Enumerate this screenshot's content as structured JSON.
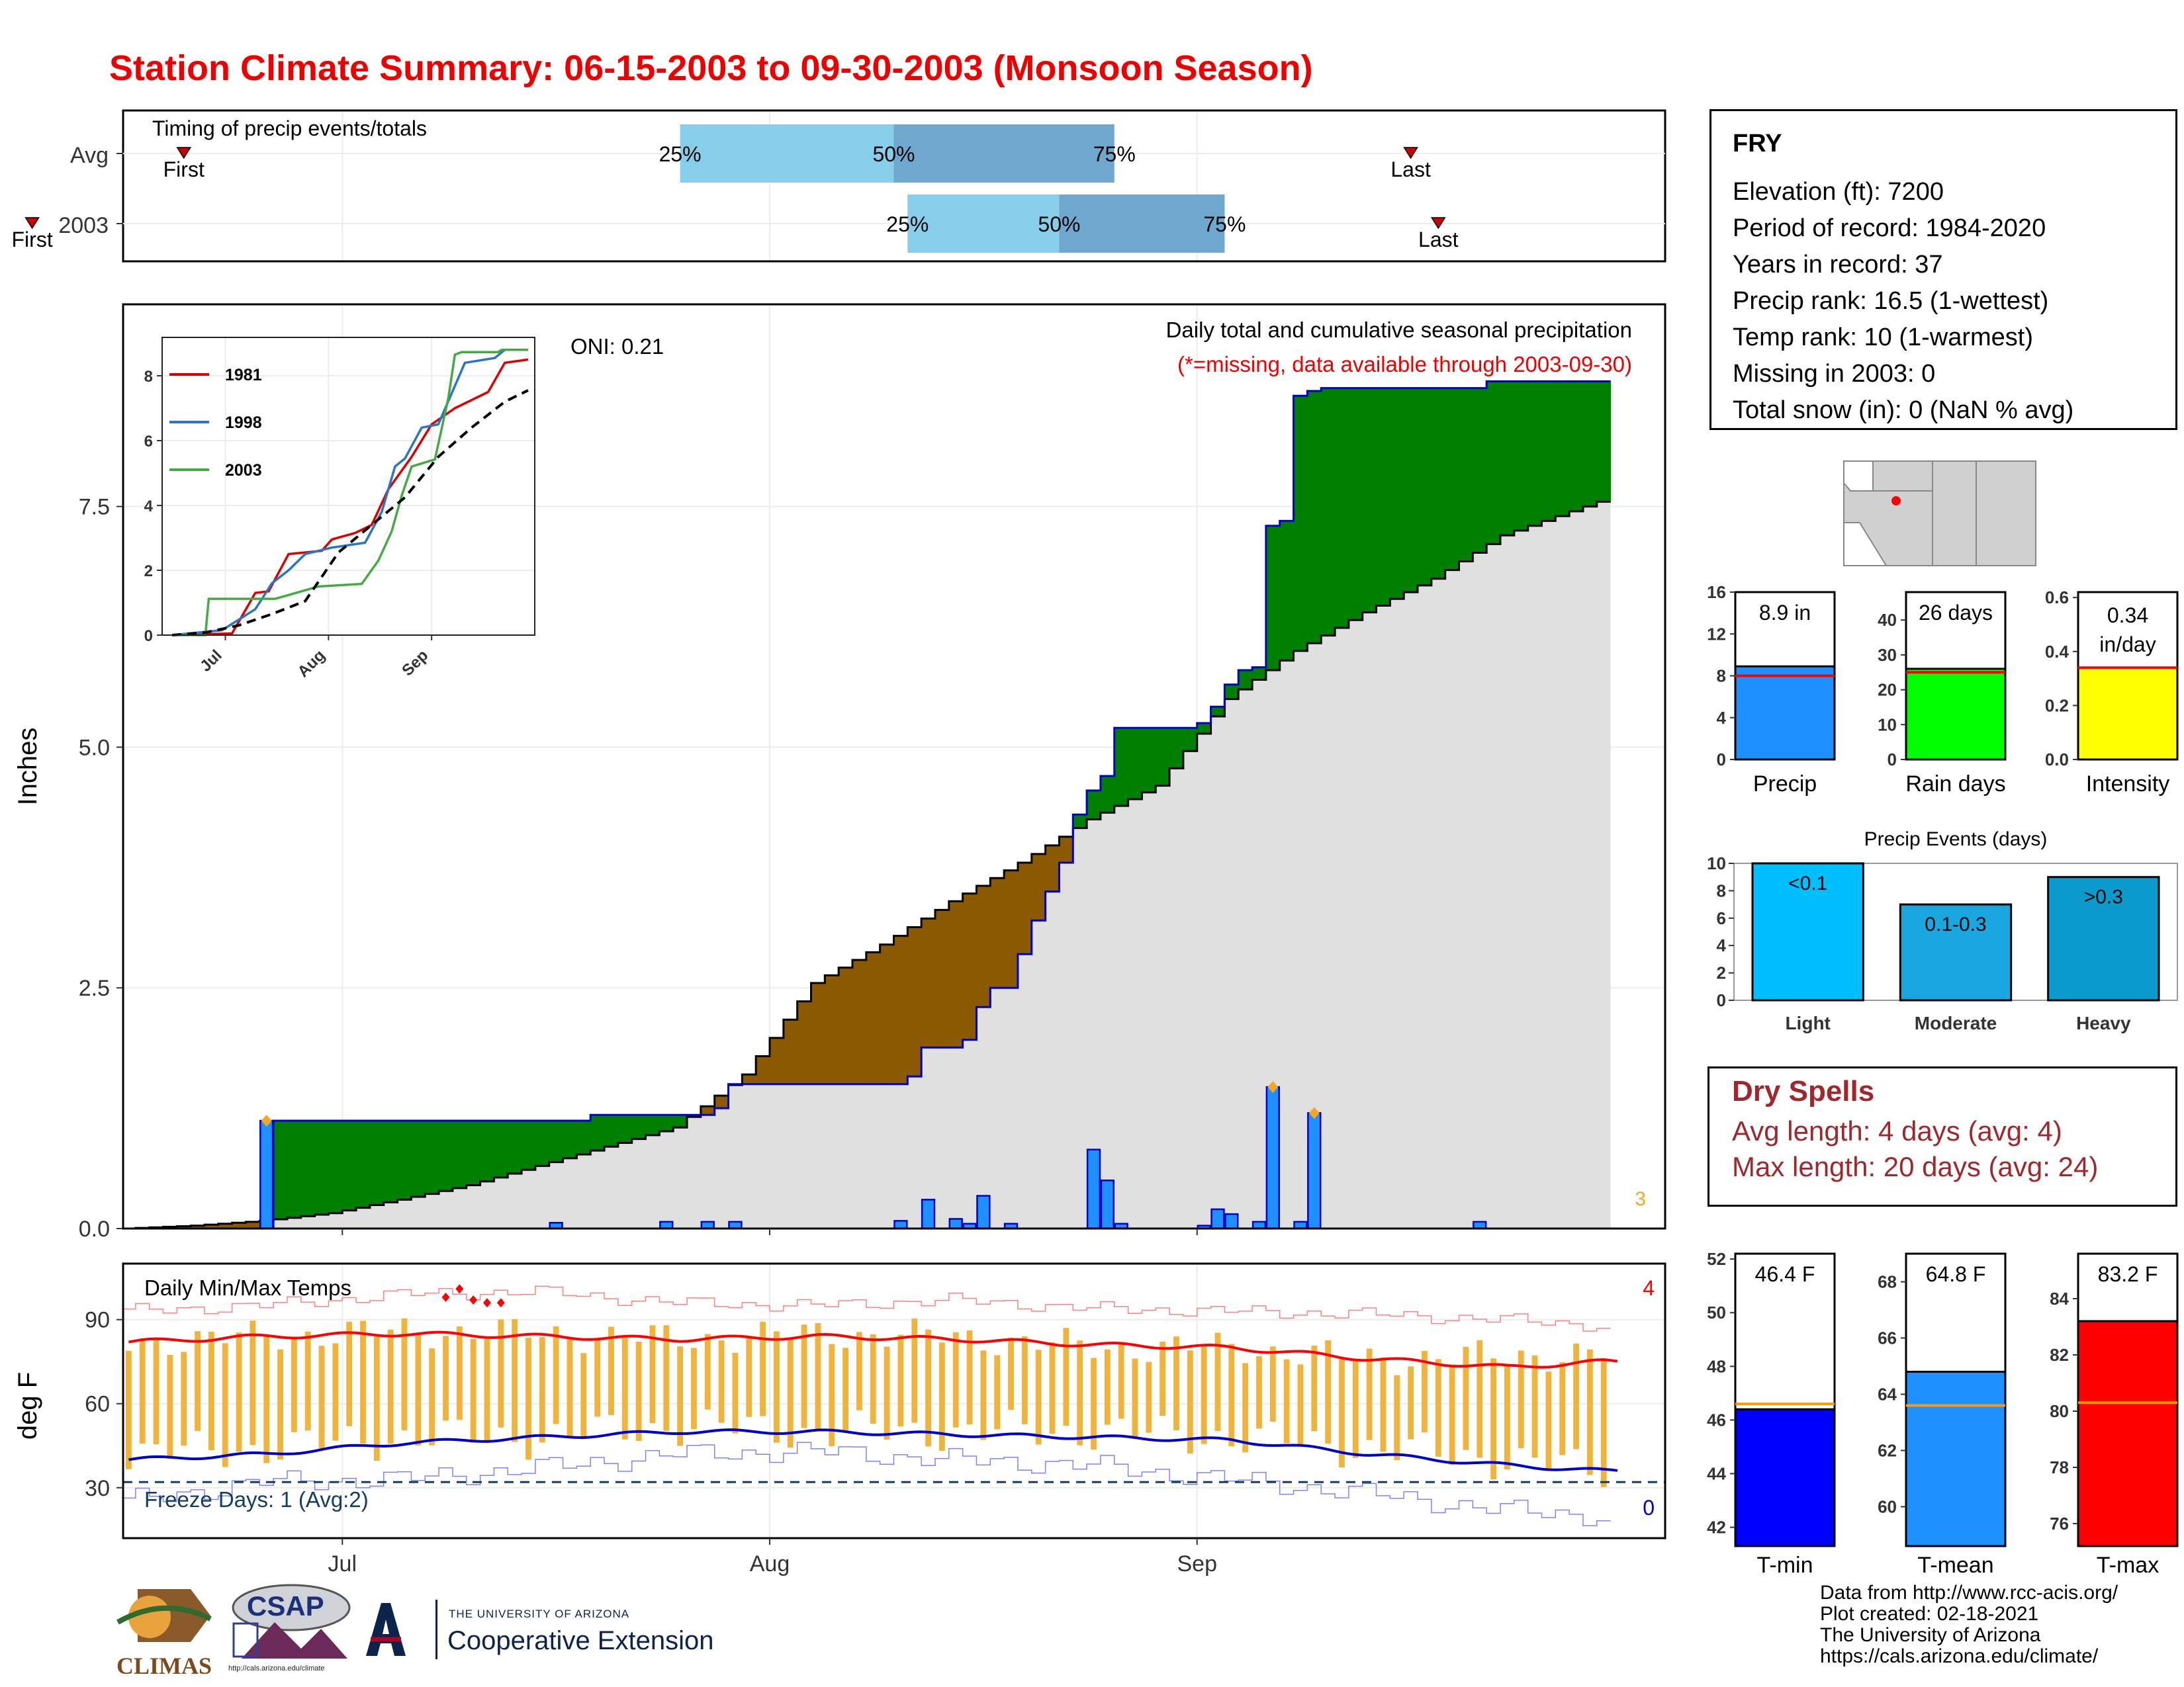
{
  "page": {
    "title": "Station Climate Summary: 06-15-2003 to 09-30-2003 (Monsoon Season)"
  },
  "station": {
    "name": "FRY",
    "lines": [
      "Elevation (ft): 7200",
      "Period of record: 1984-2020",
      "Years in record: 37",
      "Precip rank: 16.5 (1-wettest)",
      "Temp rank: 10 (1-warmest)",
      "Missing in 2003: 0",
      "Total snow (in): 0 (NaN % avg)"
    ]
  },
  "dry_spells": {
    "title": "Dry Spells",
    "avg_line": "Avg length: 4 days (avg: 4)",
    "max_line": "Max length: 20 days (avg: 24)"
  },
  "credits": [
    "Data from http://www.rcc-acis.org/",
    "Plot created: 02-18-2021",
    "The University of Arizona",
    "https://cals.arizona.edu/climate/"
  ],
  "logos": {
    "climas": "CLIMAS",
    "csap": "CSAP",
    "csap_url": "http://cals.arizona.edu/climate",
    "ua_small": "THE UNIVERSITY OF ARIZONA",
    "ua_big": "Cooperative Extension"
  },
  "colors": {
    "accent_red": "#ee0000",
    "wet_above_avg": "#008000",
    "dry_below_avg": "#8b5a00",
    "daily_bar": "#1e90ff",
    "cumulative_line": "#0000cc",
    "avg_fill": "#e0e0e0",
    "quartile_light": "#87ceeb",
    "quartile_dark": "#6fa8cf",
    "temp_bar": "#f0b43c",
    "tmax_avg": "#ff0000",
    "tmin_avg": "#0000cc",
    "dry_spell": "#a0282d"
  },
  "chart_data": [
    {
      "id": "timing",
      "type": "bar",
      "title": "Timing of precip events/totals",
      "categories": [
        "Avg",
        "2003"
      ],
      "first_label": "First",
      "last_label": "Last",
      "quartile_labels": [
        "25%",
        "50%",
        "75%"
      ],
      "x_unit": "day of season (0 = Jun 15)",
      "rows": [
        {
          "name": "Avg",
          "first": 4.5,
          "q25": 40.5,
          "q50": 56,
          "q75": 72,
          "last": 93.5
        },
        {
          "name": "2003",
          "first": -6.5,
          "q25": 57,
          "q50": 68,
          "q75": 80,
          "last": 95.5
        }
      ]
    },
    {
      "id": "precip",
      "type": "area",
      "ylabel": "Inches",
      "ylim": [
        0,
        9.6
      ],
      "yticks": [
        0,
        2.5,
        5,
        7.5
      ],
      "xticks": [
        {
          "day": 16,
          "label": "Jul"
        },
        {
          "day": 47,
          "label": "Aug"
        },
        {
          "day": 78,
          "label": "Sep"
        }
      ],
      "annotations": {
        "oni": "ONI: 0.21",
        "desc": "Daily total and cumulative seasonal precipitation",
        "missing": "(*=missing, data available through 2003-09-30)",
        "corner": "3"
      },
      "avg_cumulative": {
        "days": [
          0,
          5,
          10,
          15,
          20,
          25,
          30,
          35,
          40,
          45,
          50,
          55,
          60,
          65,
          70,
          75,
          80,
          85,
          90,
          95,
          100,
          107
        ],
        "values": [
          0.0,
          0.03,
          0.08,
          0.16,
          0.3,
          0.45,
          0.65,
          0.85,
          1.05,
          1.6,
          2.55,
          2.95,
          3.4,
          3.8,
          4.25,
          4.6,
          5.5,
          6.0,
          6.4,
          6.75,
          7.2,
          7.55
        ]
      },
      "cumulative_2003": {
        "days": [
          0,
          10,
          11,
          31,
          34,
          38,
          43,
          44,
          56,
          57,
          58,
          61,
          62,
          63,
          65,
          66,
          67,
          68,
          69,
          70,
          71,
          72,
          78,
          79,
          80,
          81,
          82,
          83,
          84,
          85,
          86,
          87,
          98,
          99,
          107
        ],
        "values": [
          0.0,
          0.0,
          1.12,
          1.12,
          1.18,
          1.18,
          1.25,
          1.5,
          1.5,
          1.58,
          1.88,
          1.96,
          2.3,
          2.5,
          2.85,
          3.2,
          3.5,
          3.8,
          4.3,
          4.55,
          4.7,
          5.2,
          5.25,
          5.42,
          5.65,
          5.8,
          5.83,
          7.3,
          7.35,
          8.65,
          8.7,
          8.73,
          8.73,
          8.8,
          8.8
        ]
      },
      "daily_2003": {
        "days": [
          10,
          31,
          39,
          42,
          44,
          56,
          58,
          60,
          61,
          62,
          64,
          70,
          71,
          72,
          78,
          79,
          80,
          82,
          83,
          85,
          86,
          98
        ],
        "values": [
          1.12,
          0.06,
          0.07,
          0.07,
          0.07,
          0.08,
          0.3,
          0.1,
          0.05,
          0.34,
          0.05,
          0.82,
          0.5,
          0.05,
          0.03,
          0.2,
          0.15,
          0.07,
          1.47,
          0.07,
          1.2,
          0.07
        ]
      },
      "highlight_days": [
        10,
        83,
        86
      ],
      "inset": {
        "type": "line",
        "ylim": [
          0,
          9
        ],
        "yticks": [
          0,
          2,
          4,
          6,
          8
        ],
        "xticks": [
          {
            "day": 16,
            "label": "Jul"
          },
          {
            "day": 47,
            "label": "Aug"
          },
          {
            "day": 78,
            "label": "Sep"
          }
        ],
        "series": [
          {
            "name": "1981",
            "color": "#dd0000",
            "days": [
              0,
              18,
              25,
              29,
              35,
              45,
              48,
              55,
              60,
              65,
              72,
              78,
              85,
              95,
              100,
              107
            ],
            "values": [
              0.0,
              0.05,
              1.3,
              1.35,
              2.5,
              2.6,
              2.95,
              3.15,
              3.4,
              4.5,
              5.5,
              6.5,
              7.0,
              7.5,
              8.4,
              8.5
            ]
          },
          {
            "name": "1998",
            "color": "#2a75c4",
            "days": [
              0,
              15,
              25,
              30,
              35,
              40,
              48,
              58,
              63,
              67,
              70,
              75,
              80,
              88,
              97,
              100,
              107
            ],
            "values": [
              0.0,
              0.15,
              0.8,
              1.6,
              2.0,
              2.5,
              2.7,
              2.85,
              3.8,
              5.2,
              5.45,
              6.4,
              6.5,
              8.4,
              8.55,
              8.8,
              8.8
            ]
          },
          {
            "name": "2003",
            "color": "#44aa44",
            "days": [
              0,
              10,
              11,
              31,
              44,
              57,
              62,
              66,
              69,
              72,
              79,
              83,
              85,
              87,
              98,
              99,
              107
            ],
            "values": [
              0.0,
              0.0,
              1.12,
              1.12,
              1.5,
              1.58,
              2.3,
              3.2,
              4.3,
              5.2,
              5.42,
              7.3,
              8.65,
              8.73,
              8.73,
              8.8,
              8.8
            ]
          },
          {
            "name": "",
            "color": "#000000",
            "dash": true,
            "days": [
              0,
              10,
              20,
              30,
              40,
              50,
              60,
              70,
              80,
              90,
              100,
              107
            ],
            "values": [
              0.0,
              0.08,
              0.3,
              0.65,
              1.05,
              2.55,
              3.4,
              4.25,
              5.5,
              6.4,
              7.2,
              7.55
            ]
          }
        ]
      }
    },
    {
      "id": "temperature",
      "type": "bar",
      "title": "Daily Min/Max Temps",
      "ylabel": "deg F",
      "ylim": [
        12,
        110
      ],
      "yticks": [
        30,
        60,
        90
      ],
      "xticks": [
        {
          "day": 16,
          "label": "Jul"
        },
        {
          "day": 47,
          "label": "Aug"
        },
        {
          "day": 78,
          "label": "Sep"
        }
      ],
      "freeze_text": "Freeze Days: 1 (Avg:2)",
      "freeze_line": 32,
      "corner_top": "4",
      "corner_bottom": "0",
      "tmax_2003_approx": {
        "days": [
          0,
          10,
          20,
          30,
          40,
          50,
          60,
          70,
          80,
          90,
          100,
          107
        ],
        "values": [
          82,
          84,
          86,
          85,
          83,
          85,
          84,
          80,
          80,
          76,
          77,
          78
        ]
      },
      "tmin_2003_approx": {
        "days": [
          0,
          10,
          20,
          30,
          40,
          50,
          60,
          70,
          80,
          90,
          100,
          107
        ],
        "values": [
          42,
          44,
          48,
          48,
          52,
          50,
          50,
          50,
          48,
          44,
          40,
          36
        ]
      },
      "tmax_avg": {
        "days": [
          0,
          10,
          20,
          30,
          40,
          50,
          60,
          70,
          80,
          90,
          100,
          107
        ],
        "values": [
          82,
          84,
          85,
          84,
          83,
          84,
          83,
          81,
          80,
          76,
          73,
          75
        ]
      },
      "tmin_avg": {
        "days": [
          0,
          10,
          20,
          30,
          40,
          50,
          60,
          70,
          80,
          90,
          100,
          107
        ],
        "values": [
          40,
          42,
          46,
          48,
          50,
          50,
          49,
          48,
          47,
          42,
          38,
          36
        ]
      },
      "tmax_record": {
        "days": [
          0,
          10,
          20,
          30,
          40,
          50,
          60,
          70,
          80,
          90,
          100,
          107
        ],
        "values": [
          93,
          95,
          99,
          100,
          96,
          95,
          97,
          94,
          93,
          92,
          90,
          88
        ]
      },
      "tmin_record": {
        "days": [
          0,
          10,
          20,
          30,
          40,
          50,
          60,
          70,
          80,
          90,
          100,
          107
        ],
        "values": [
          25,
          32,
          33,
          37,
          42,
          43,
          40,
          38,
          33,
          28,
          22,
          20
        ]
      },
      "record_highs": [
        {
          "day": 23,
          "value": 98
        },
        {
          "day": 24,
          "value": 101
        },
        {
          "day": 25,
          "value": 97
        },
        {
          "day": 26,
          "value": 96
        },
        {
          "day": 27,
          "value": 96
        }
      ]
    },
    {
      "id": "precip_summary",
      "type": "bar",
      "bars": [
        {
          "name": "Precip",
          "value": 8.9,
          "avg": 8.0,
          "label": "8.9 in",
          "ylim": [
            0,
            16
          ],
          "yticks": [
            0,
            4,
            8,
            12,
            16
          ],
          "color": "#1e90ff"
        },
        {
          "name": "Rain days",
          "value": 26,
          "avg": 25,
          "label": "26 days",
          "ylim": [
            0,
            48
          ],
          "yticks": [
            0,
            10,
            20,
            30,
            40
          ],
          "color": "#00ff00"
        },
        {
          "name": "Intensity",
          "value": 0.34,
          "avg": 0.34,
          "label": "0.34 in/day",
          "ylim": [
            0,
            0.62
          ],
          "yticks": [
            0.0,
            0.2,
            0.4,
            0.6
          ],
          "color": "#ffff00"
        }
      ]
    },
    {
      "id": "precip_events",
      "type": "bar",
      "title": "Precip Events (days)",
      "ylim": [
        0,
        10
      ],
      "yticks": [
        0,
        2,
        4,
        6,
        8,
        10
      ],
      "categories": [
        "Light",
        "Moderate",
        "Heavy"
      ],
      "values": [
        10,
        7,
        9
      ],
      "bar_labels": [
        "<0.1",
        "0.1-0.3",
        ">0.3"
      ],
      "colors": [
        "#00bfff",
        "#1aa7df",
        "#0a9bcc"
      ]
    },
    {
      "id": "temp_summary",
      "type": "bar",
      "bars": [
        {
          "name": "T-min",
          "value": 46.4,
          "avg": 46.6,
          "label": "46.4 F",
          "ylim": [
            41.3,
            52.2
          ],
          "yticks": [
            42,
            44,
            46,
            48,
            50,
            52
          ],
          "color": "#0000ff"
        },
        {
          "name": "T-mean",
          "value": 64.8,
          "avg": 63.6,
          "label": "64.8 F",
          "ylim": [
            58.6,
            69
          ],
          "yticks": [
            60,
            62,
            64,
            66,
            68
          ],
          "color": "#1e90ff"
        },
        {
          "name": "T-max",
          "value": 83.2,
          "avg": 80.3,
          "label": "83.2 F",
          "ylim": [
            75.2,
            85.6
          ],
          "yticks": [
            76,
            78,
            80,
            82,
            84
          ],
          "color": "#ff0000"
        }
      ]
    }
  ]
}
